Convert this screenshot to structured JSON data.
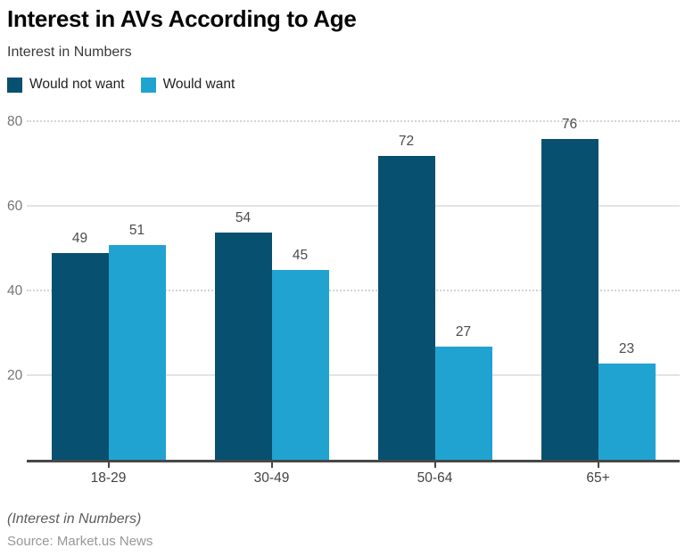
{
  "chart_data": {
    "type": "bar",
    "title": "Interest in AVs According to Age",
    "subtitle": "Interest in Numbers",
    "categories": [
      "18-29",
      "30-49",
      "50-64",
      "65+"
    ],
    "series": [
      {
        "name": "Would not want",
        "color": "#07506F",
        "values": [
          49,
          54,
          72,
          76
        ]
      },
      {
        "name": "Would want",
        "color": "#21A3D1",
        "values": [
          51,
          45,
          27,
          23
        ]
      }
    ],
    "ylim": [
      0,
      80
    ],
    "yticks": [
      {
        "value": 20,
        "line": "solid"
      },
      {
        "value": 40,
        "line": "dotted"
      },
      {
        "value": 60,
        "line": "solid"
      },
      {
        "value": 80,
        "line": "dotted"
      }
    ],
    "grid": "horizontal",
    "legend_position": "top-left",
    "value_labels": true,
    "xlabel": "",
    "ylabel": ""
  },
  "footer": {
    "note": "(Interest in Numbers)",
    "source": "Source: Market.us News"
  },
  "colors": {
    "axis": "#474747",
    "grid_solid": "#e3e3e3",
    "grid_dotted": "#d4d4d4",
    "value_label": "#4c4c4c",
    "tick_label": "#757575",
    "category_label": "#424242"
  }
}
